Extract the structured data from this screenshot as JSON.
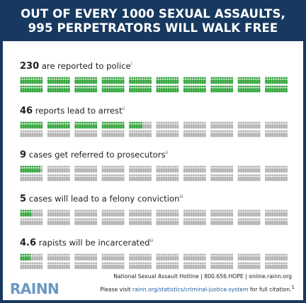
{
  "header": {
    "line1": "OUT OF EVERY 1000 SEXUAL ASSAULTS,",
    "line2": "995 PERPETRATORS WILL WALK FREE"
  },
  "colors": {
    "highlight": "#3aa843",
    "muted": "#b5b5b5",
    "header_bg": "#17395f",
    "logo": "#6b98c2"
  },
  "icon": "person-icon",
  "rows": [
    {
      "number": "230",
      "text": "are reported to police",
      "citation": "i",
      "highlighted": 230
    },
    {
      "number": "46",
      "text": "reports lead to arrest",
      "citation": "ii",
      "highlighted": 46
    },
    {
      "number": "9",
      "text": "cases get referred to prosecutors",
      "citation": "ii",
      "highlighted": 9
    },
    {
      "number": "5",
      "text": "cases will lead to a felony conviction",
      "citation": "iii",
      "highlighted": 5
    },
    {
      "number": "4.6",
      "text": "rapists will be incarcerated",
      "citation": "iii",
      "highlighted": 4.6
    }
  ],
  "footer": {
    "hotline": "National Sexual Assault Hotline | 800.656.HOPE | online.rainn.org",
    "citation_prefix": "Please visit",
    "citation_link": "rainn.org/statistics/criminal-justice-system",
    "citation_suffix": "for full citation.",
    "citation_mark": "1"
  },
  "logo": "RAINN"
}
